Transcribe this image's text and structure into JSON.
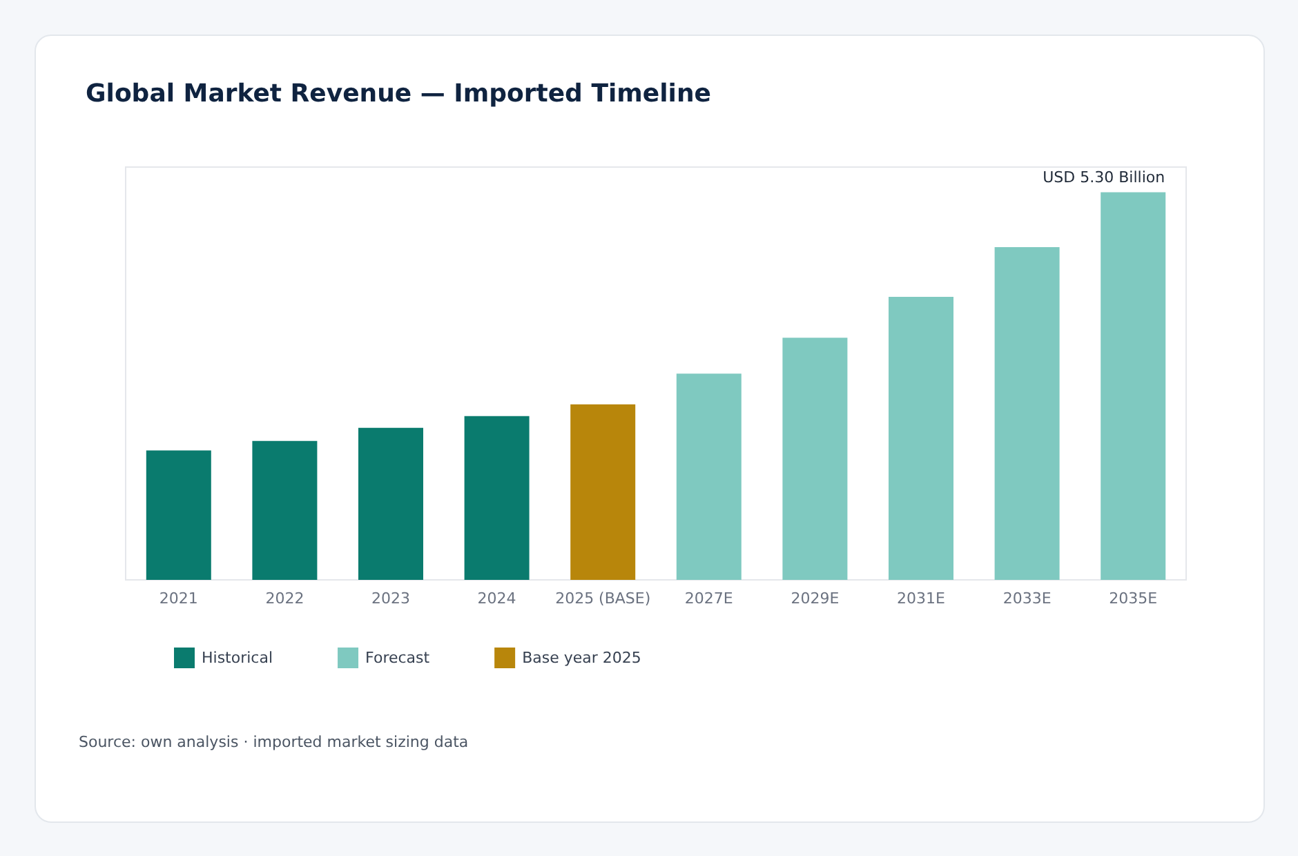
{
  "chart_data": {
    "type": "bar",
    "title": "Global Market Revenue — Imported Timeline",
    "categories": [
      "2021",
      "2022",
      "2023",
      "2024",
      "2025 (BASE)",
      "2027E",
      "2029E",
      "2031E",
      "2033E",
      "2035E"
    ],
    "series": [
      {
        "name": "Historical",
        "color": "#0a7b6e",
        "values": [
          1.77,
          1.9,
          2.08,
          2.24,
          null,
          null,
          null,
          null,
          null,
          null
        ]
      },
      {
        "name": "Forecast",
        "color": "#7fc9c0",
        "values": [
          null,
          null,
          null,
          null,
          null,
          2.82,
          3.31,
          3.87,
          4.55,
          5.3
        ],
        "value_labels": [
          null,
          null,
          null,
          null,
          null,
          null,
          null,
          null,
          null,
          "USD 5.30 Billion"
        ]
      },
      {
        "name": "Base year 2025",
        "color": "#b8860b",
        "values": [
          null,
          null,
          null,
          null,
          2.4,
          null,
          null,
          null,
          null,
          null
        ]
      }
    ],
    "legend": "bottom",
    "grid": false,
    "annotations": [
      "Source: own analysis · imported market sizing data"
    ]
  }
}
